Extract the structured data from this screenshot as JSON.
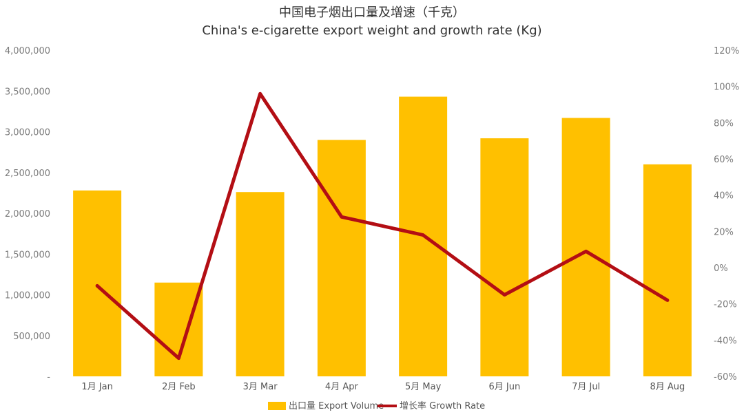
{
  "chart_data": {
    "type": "bar",
    "title": "中国电子烟出口量及增速（千克）",
    "subtitle": "China's e-cigarette export weight and growth rate (Kg)",
    "categories": [
      "1月 Jan",
      "2月 Feb",
      "3月 Mar",
      "4月 Apr",
      "5月 May",
      "6月 Jun",
      "7月 Jul",
      "8月 Aug"
    ],
    "series": [
      {
        "name": "出口量 Export Volume",
        "type": "bar",
        "axis": "left",
        "values": [
          2280000,
          1150000,
          2260000,
          2900000,
          3430000,
          2920000,
          3170000,
          2600000
        ],
        "color": "#FFC000"
      },
      {
        "name": "增长率 Growth Rate",
        "type": "line",
        "axis": "right",
        "values": [
          -10,
          -50,
          96,
          28,
          18,
          -15,
          9,
          -18
        ],
        "color": "#B30E14"
      }
    ],
    "y_left": {
      "min": 0,
      "max": 4000000,
      "ticks": [
        0,
        500000,
        1000000,
        1500000,
        2000000,
        2500000,
        3000000,
        3500000,
        4000000
      ],
      "tick_labels": [
        "-",
        "500,000",
        "1,000,000",
        "1,500,000",
        "2,000,000",
        "2,500,000",
        "3,000,000",
        "3,500,000",
        "4,000,000"
      ]
    },
    "y_right": {
      "min": -60,
      "max": 120,
      "ticks": [
        -60,
        -40,
        -20,
        0,
        20,
        40,
        60,
        80,
        100,
        120
      ],
      "tick_labels": [
        "-60%",
        "-40%",
        "-20%",
        "0%",
        "20%",
        "40%",
        "60%",
        "80%",
        "100%",
        "120%"
      ]
    },
    "grid": false,
    "legend_position": "bottom"
  }
}
